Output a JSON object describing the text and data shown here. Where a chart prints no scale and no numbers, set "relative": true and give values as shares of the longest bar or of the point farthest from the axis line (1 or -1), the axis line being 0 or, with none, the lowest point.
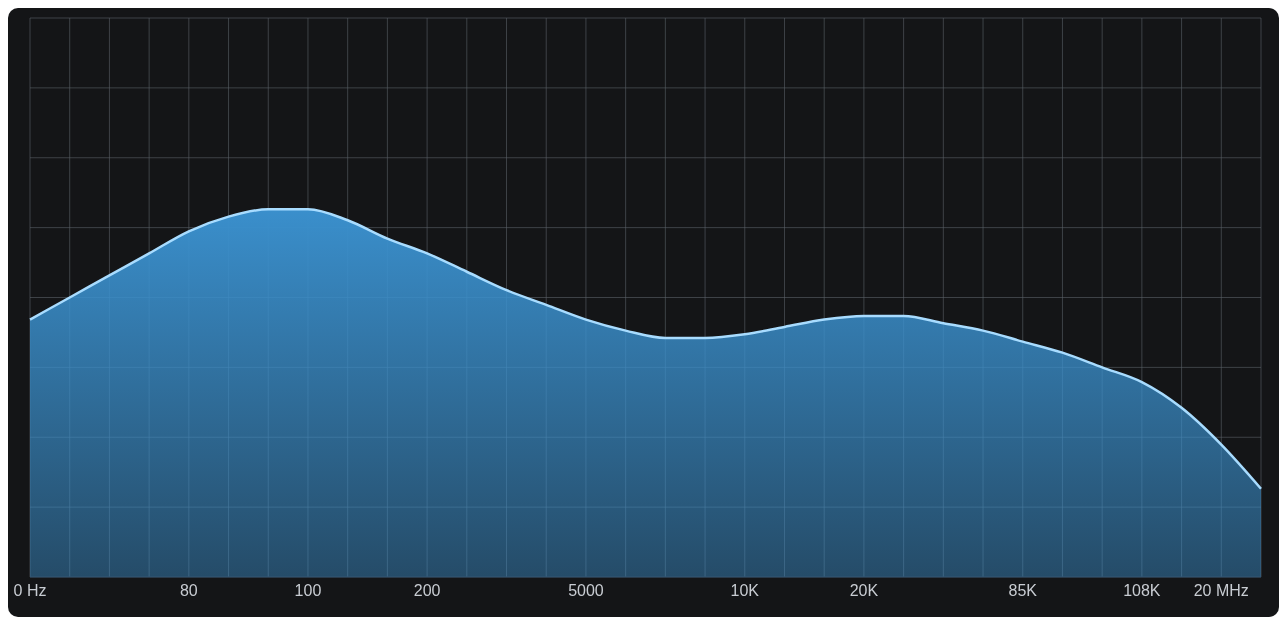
{
  "chart_data": {
    "type": "area",
    "relative": true,
    "grid": true,
    "legend": false,
    "categories": [
      "0 Hz",
      null,
      null,
      null,
      "80",
      null,
      null,
      "100",
      null,
      null,
      "200",
      null,
      null,
      null,
      "5000",
      null,
      null,
      null,
      "10K",
      null,
      null,
      "20K",
      null,
      null,
      null,
      "85K",
      null,
      null,
      "108K",
      null,
      "20 MHz",
      null
    ],
    "series": [
      {
        "color": "#3a8fcc",
        "values": [
          0.7,
          0.76,
          0.82,
          0.88,
          0.94,
          0.98,
          1.0,
          1.0,
          0.97,
          0.92,
          0.88,
          0.83,
          0.78,
          0.74,
          0.7,
          0.67,
          0.65,
          0.65,
          0.66,
          0.68,
          0.7,
          0.71,
          0.71,
          0.69,
          0.67,
          0.64,
          0.61,
          0.57,
          0.53,
          0.46,
          0.36,
          0.24
        ]
      }
    ]
  }
}
